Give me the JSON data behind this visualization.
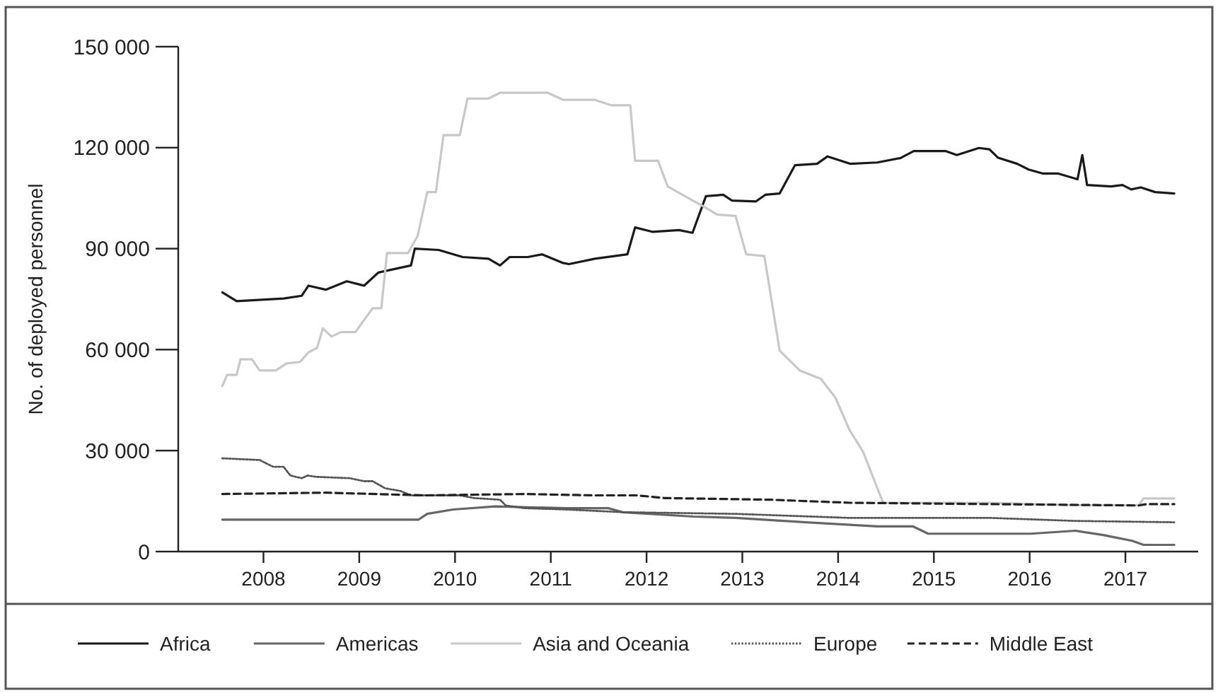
{
  "chart_data": {
    "type": "line",
    "ylabel": "No. of deployed personnel",
    "xlim": [
      2007.11,
      2017.76
    ],
    "xticks": [
      2008,
      2009,
      2010,
      2011,
      2012,
      2013,
      2014,
      2015,
      2016,
      2017
    ],
    "ylim": [
      0,
      150000
    ],
    "yticks": [
      0,
      {
        "value": 30000,
        "label": "30 000"
      },
      {
        "value": 60000,
        "label": "60 000"
      },
      {
        "value": 90000,
        "label": "90 000"
      },
      {
        "value": 120000,
        "label": "120 000"
      },
      {
        "value": 150000,
        "label": "150 000"
      }
    ],
    "grid": false,
    "legend": "bottom",
    "marker": "none",
    "series": [
      {
        "name": "Africa",
        "color": "#1a1a1a",
        "line_style": "solid",
        "x": [
          2007.57,
          2007.72,
          2008.21,
          2008.4,
          2008.47,
          2008.65,
          2008.87,
          2009.05,
          2009.2,
          2009.54,
          2009.58,
          2009.83,
          2010.08,
          2010.35,
          2010.47,
          2010.57,
          2010.76,
          2010.91,
          2011.12,
          2011.19,
          2011.46,
          2011.8,
          2011.88,
          2012.06,
          2012.34,
          2012.48,
          2012.62,
          2012.8,
          2012.89,
          2013.14,
          2013.24,
          2013.39,
          2013.55,
          2013.78,
          2013.89,
          2014.13,
          2014.41,
          2014.65,
          2014.79,
          2015.12,
          2015.24,
          2015.47,
          2015.58,
          2015.67,
          2015.87,
          2015.99,
          2016.14,
          2016.3,
          2016.5,
          2016.55,
          2016.6,
          2016.85,
          2016.97,
          2017.06,
          2017.16,
          2017.31,
          2017.51
        ],
        "values": [
          77000,
          74400,
          75200,
          76000,
          79000,
          77800,
          80300,
          79000,
          82900,
          85000,
          90000,
          89600,
          87500,
          87000,
          85000,
          87500,
          87500,
          88300,
          85800,
          85400,
          87000,
          88300,
          96300,
          95000,
          95500,
          94700,
          105600,
          106000,
          104300,
          104000,
          106000,
          106400,
          114800,
          115200,
          117400,
          115200,
          115600,
          116900,
          119000,
          119000,
          117800,
          119900,
          119500,
          117000,
          115200,
          113500,
          112300,
          112300,
          110600,
          117800,
          108900,
          108500,
          108900,
          107600,
          108200,
          106800,
          106400
        ]
      },
      {
        "name": "Americas",
        "color": "#666666",
        "line_style": "solid",
        "x": [
          2007.57,
          2009.62,
          2009.71,
          2009.98,
          2010.42,
          2011.16,
          2011.6,
          2011.75,
          2012.49,
          2012.93,
          2013.67,
          2014.41,
          2014.78,
          2014.94,
          2015.59,
          2016.01,
          2016.48,
          2016.77,
          2017.07,
          2017.19,
          2017.51
        ],
        "values": [
          9500,
          9500,
          11200,
          12500,
          13400,
          12900,
          12900,
          11700,
          10400,
          10000,
          8700,
          7500,
          7500,
          5300,
          5300,
          5300,
          6200,
          4900,
          3200,
          2000,
          2000
        ]
      },
      {
        "name": "Asia and Oceania",
        "color": "#c8c8c8",
        "line_style": "solid",
        "x": [
          2007.57,
          2007.62,
          2007.72,
          2007.76,
          2007.88,
          2007.96,
          2008.13,
          2008.24,
          2008.38,
          2008.47,
          2008.56,
          2008.62,
          2008.71,
          2008.81,
          2008.96,
          2009.03,
          2009.14,
          2009.23,
          2009.29,
          2009.51,
          2009.61,
          2009.71,
          2009.8,
          2009.88,
          2010.05,
          2010.13,
          2010.35,
          2010.47,
          2010.67,
          2010.97,
          2011.13,
          2011.46,
          2011.63,
          2011.83,
          2011.88,
          2012.12,
          2012.22,
          2012.45,
          2012.59,
          2012.74,
          2012.93,
          2013.04,
          2013.23,
          2013.39,
          2013.6,
          2013.82,
          2013.97,
          2014.12,
          2014.26,
          2014.47,
          2015.59,
          2016.48,
          2017.14,
          2017.19,
          2017.51
        ],
        "values": [
          49200,
          52500,
          52500,
          57100,
          57100,
          53800,
          53800,
          55900,
          56300,
          59200,
          60500,
          66300,
          63900,
          65200,
          65200,
          68000,
          72300,
          72300,
          88700,
          88700,
          93800,
          106800,
          106800,
          123700,
          123700,
          134600,
          134600,
          136300,
          136300,
          136300,
          134200,
          134200,
          132600,
          132600,
          116100,
          116100,
          108500,
          104800,
          102600,
          100100,
          99700,
          88300,
          87800,
          59700,
          53800,
          51300,
          45800,
          36100,
          29700,
          14500,
          14500,
          13800,
          13800,
          15800,
          15800
        ]
      },
      {
        "name": "Europe",
        "color": "#555555",
        "line_style": "dotted",
        "x": [
          2007.57,
          2007.96,
          2008.1,
          2008.21,
          2008.28,
          2008.4,
          2008.46,
          2008.55,
          2008.9,
          2009.05,
          2009.14,
          2009.27,
          2009.43,
          2009.54,
          2010.05,
          2010.2,
          2010.47,
          2010.53,
          2010.72,
          2011.16,
          2011.75,
          2012.93,
          2014.12,
          2015.59,
          2016.48,
          2017.51
        ],
        "values": [
          27700,
          27200,
          25200,
          25200,
          22600,
          21800,
          22600,
          22200,
          21800,
          20900,
          20900,
          18800,
          18000,
          16700,
          16700,
          15900,
          15400,
          13700,
          12900,
          12500,
          11700,
          11200,
          10000,
          10000,
          9100,
          8700
        ]
      },
      {
        "name": "Middle East",
        "color": "#222222",
        "line_style": "dashed",
        "x": [
          2007.57,
          2008.65,
          2009.68,
          2010.72,
          2011.46,
          2011.9,
          2012.19,
          2013.3,
          2014.12,
          2015.59,
          2017.14,
          2017.22,
          2017.51
        ],
        "values": [
          17100,
          17500,
          16700,
          17100,
          16700,
          16700,
          15900,
          15400,
          14500,
          14100,
          13700,
          14100,
          14100
        ]
      }
    ]
  }
}
